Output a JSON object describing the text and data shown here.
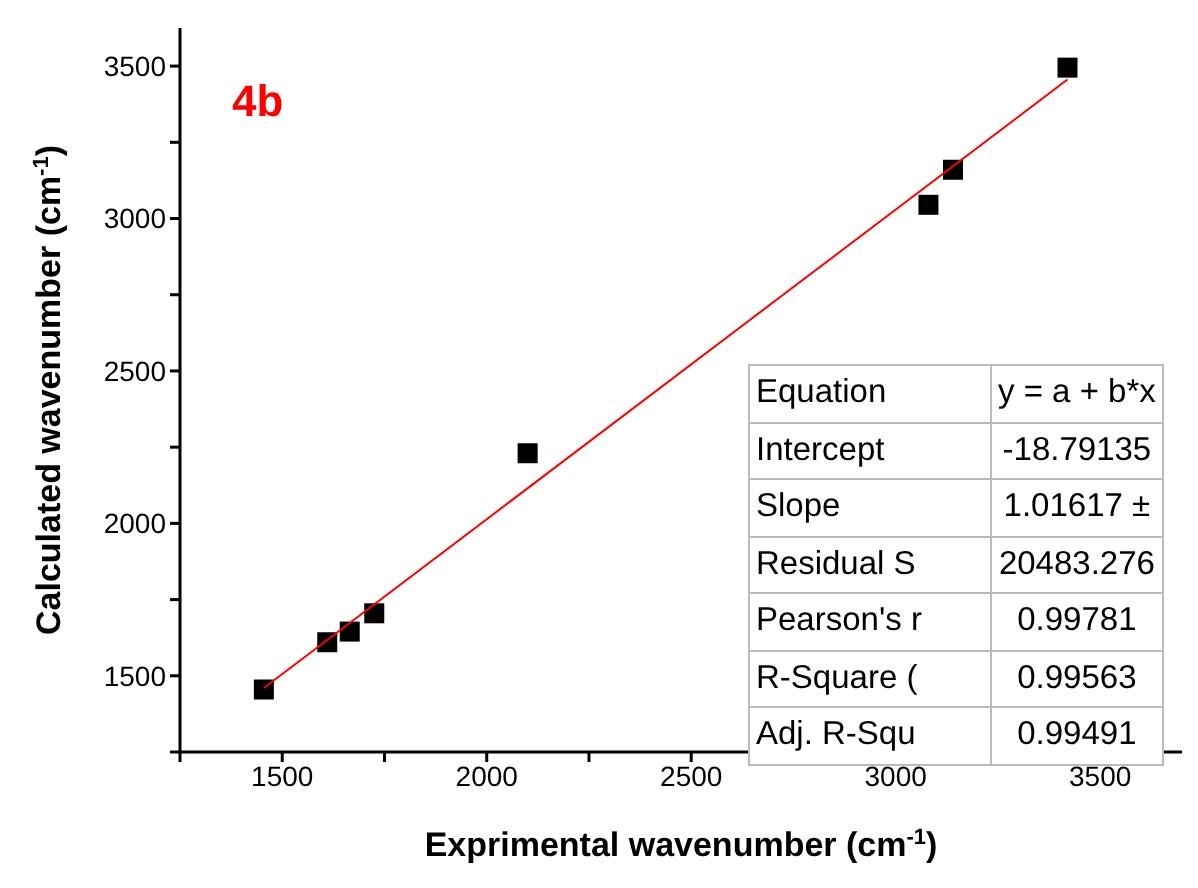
{
  "chart_data": {
    "type": "scatter",
    "xlabel": "Exprimental wavenumber (cm$^{-1}$)",
    "ylabel": "Calculated wavenumber (cm$^{-1}$)",
    "x": [
      1455,
      1610,
      1665,
      1725,
      2100,
      3080,
      3140,
      3420
    ],
    "series": [
      {
        "color": "#000000",
        "marker": "square",
        "values": [
          1455,
          1610,
          1645,
          1705,
          2230,
          3045,
          3160,
          3495
        ]
      },
      {
        "type": "line",
        "color": "#ff0000",
        "x": [
          1455,
          3420
        ],
        "values": [
          1460,
          3456
        ],
        "marker": "none"
      }
    ],
    "xlim": [
      1250,
      3700
    ],
    "ylim": [
      1250,
      3625
    ],
    "xticks": [
      {
        "value": 1250,
        "label": null
      },
      1500,
      {
        "value": 1750,
        "label": null
      },
      2000,
      {
        "value": 2250,
        "label": null
      },
      2500,
      {
        "value": 2750,
        "label": null
      },
      3000,
      {
        "value": 3250,
        "label": null
      },
      3500
    ],
    "yticks": [
      {
        "value": 1250,
        "label": null
      },
      1500,
      {
        "value": 1750,
        "label": null
      },
      2000,
      {
        "value": 2250,
        "label": null
      },
      2500,
      {
        "value": 2750,
        "label": null
      },
      3000,
      {
        "value": 3250,
        "label": null
      },
      3500
    ],
    "annotations": [
      "4b",
      "Equation",
      "y = a + b*x",
      "Intercept",
      "-18.79135",
      "Slope",
      "1.01617 ±",
      "Residual S",
      "20483.276",
      "Pearson's r",
      "0.99781",
      "R-Square (",
      "0.99563",
      "Adj. R-Squ",
      "0.99491"
    ]
  }
}
